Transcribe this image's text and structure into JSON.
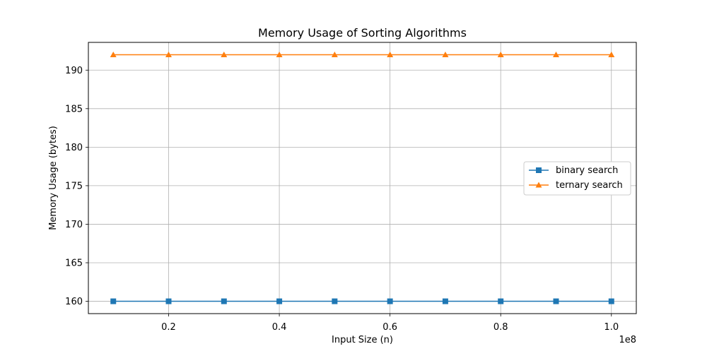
{
  "chart_data": {
    "type": "line",
    "title": "Memory Usage of Sorting Algorithms",
    "xlabel": "Input Size (n)",
    "ylabel": "Memory Usage (bytes)",
    "x_offset_label": "1e8",
    "x": [
      10000000,
      20000000,
      30000000,
      40000000,
      50000000,
      60000000,
      70000000,
      80000000,
      90000000,
      100000000
    ],
    "xlim": [
      5500000,
      104500000
    ],
    "ylim": [
      158.4,
      193.6
    ],
    "x_ticks": [
      20000000,
      40000000,
      60000000,
      80000000,
      100000000
    ],
    "x_tick_labels": [
      "0.2",
      "0.4",
      "0.6",
      "0.8",
      "1.0"
    ],
    "y_ticks": [
      160,
      165,
      170,
      175,
      180,
      185,
      190
    ],
    "y_tick_labels": [
      "160",
      "165",
      "170",
      "175",
      "180",
      "185",
      "190"
    ],
    "grid": true,
    "legend_position": "center-right",
    "series": [
      {
        "name": "binary search",
        "color": "#1f77b4",
        "marker": "square",
        "values": [
          160,
          160,
          160,
          160,
          160,
          160,
          160,
          160,
          160,
          160
        ]
      },
      {
        "name": "ternary search",
        "color": "#ff7f0e",
        "marker": "triangle",
        "values": [
          192,
          192,
          192,
          192,
          192,
          192,
          192,
          192,
          192,
          192
        ]
      }
    ]
  }
}
